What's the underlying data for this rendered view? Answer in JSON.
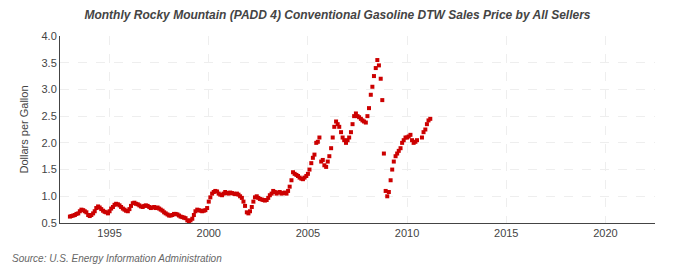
{
  "chart_data": {
    "type": "scatter",
    "title": "Monthly Rocky Mountain (PADD 4) Conventional Gasoline DTW Sales Price by All Sellers",
    "ylabel": "Dollars per Gallon",
    "annotation": "Source: U.S. Energy Information Administration",
    "color": "#cc0000",
    "marker": "square",
    "grid": true,
    "xlim": [
      1992.5,
      2022.5
    ],
    "xticks": [
      1995,
      2000,
      2005,
      2010,
      2015,
      2020
    ],
    "ylim": [
      0.5,
      4.0
    ],
    "yticks": [
      0.5,
      {
        "value": 1.0,
        "label": "1.0"
      },
      1.5,
      {
        "value": 2.0,
        "label": "2.0"
      },
      2.5,
      {
        "value": 3.0,
        "label": "3.0"
      },
      3.5,
      {
        "value": 4.0,
        "label": "4.0"
      }
    ],
    "x": [
      1993.0,
      1993.08,
      1993.17,
      1993.25,
      1993.33,
      1993.42,
      1993.5,
      1993.58,
      1993.67,
      1993.75,
      1993.83,
      1993.92,
      1994.0,
      1994.08,
      1994.17,
      1994.25,
      1994.33,
      1994.42,
      1994.5,
      1994.58,
      1994.67,
      1994.75,
      1994.83,
      1994.92,
      1995.0,
      1995.08,
      1995.17,
      1995.25,
      1995.33,
      1995.42,
      1995.5,
      1995.58,
      1995.67,
      1995.75,
      1995.83,
      1995.92,
      1996.0,
      1996.08,
      1996.17,
      1996.25,
      1996.33,
      1996.42,
      1996.5,
      1996.58,
      1996.67,
      1996.75,
      1996.83,
      1996.92,
      1997.0,
      1997.08,
      1997.17,
      1997.25,
      1997.33,
      1997.42,
      1997.5,
      1997.58,
      1997.67,
      1997.75,
      1997.83,
      1997.92,
      1998.0,
      1998.08,
      1998.17,
      1998.25,
      1998.33,
      1998.42,
      1998.5,
      1998.58,
      1998.67,
      1998.75,
      1998.83,
      1998.92,
      1999.0,
      1999.08,
      1999.17,
      1999.25,
      1999.33,
      1999.42,
      1999.5,
      1999.58,
      1999.67,
      1999.75,
      1999.83,
      1999.92,
      2000.0,
      2000.08,
      2000.17,
      2000.25,
      2000.33,
      2000.42,
      2000.5,
      2000.58,
      2000.67,
      2000.75,
      2000.83,
      2000.92,
      2001.0,
      2001.08,
      2001.17,
      2001.25,
      2001.33,
      2001.42,
      2001.5,
      2001.58,
      2001.67,
      2001.75,
      2001.83,
      2001.92,
      2002.0,
      2002.08,
      2002.17,
      2002.25,
      2002.33,
      2002.42,
      2002.5,
      2002.58,
      2002.67,
      2002.75,
      2002.83,
      2002.92,
      2003.0,
      2003.08,
      2003.17,
      2003.25,
      2003.33,
      2003.42,
      2003.5,
      2003.58,
      2003.67,
      2003.75,
      2003.83,
      2003.92,
      2004.0,
      2004.08,
      2004.17,
      2004.25,
      2004.33,
      2004.42,
      2004.5,
      2004.58,
      2004.67,
      2004.75,
      2004.83,
      2004.92,
      2005.0,
      2005.08,
      2005.17,
      2005.25,
      2005.33,
      2005.42,
      2005.5,
      2005.58,
      2005.67,
      2005.75,
      2005.83,
      2005.92,
      2006.0,
      2006.08,
      2006.17,
      2006.25,
      2006.33,
      2006.42,
      2006.5,
      2006.58,
      2006.67,
      2006.75,
      2006.83,
      2006.92,
      2007.0,
      2007.08,
      2007.17,
      2007.25,
      2007.33,
      2007.42,
      2007.5,
      2007.58,
      2007.67,
      2007.75,
      2007.83,
      2007.92,
      2008.0,
      2008.08,
      2008.17,
      2008.25,
      2008.33,
      2008.42,
      2008.5,
      2008.58,
      2008.67,
      2008.75,
      2008.83,
      2008.92,
      2009.0,
      2009.08,
      2009.17,
      2009.25,
      2009.33,
      2009.42,
      2009.5,
      2009.58,
      2009.67,
      2009.75,
      2009.83,
      2009.92,
      2010.0,
      2010.08,
      2010.17,
      2010.25,
      2010.33,
      2010.42,
      2010.5,
      2010.75,
      2010.83,
      2010.92,
      2011.0,
      2011.08,
      2011.17
    ],
    "values": [
      0.62,
      0.63,
      0.64,
      0.65,
      0.67,
      0.68,
      0.72,
      0.75,
      0.74,
      0.72,
      0.7,
      0.65,
      0.63,
      0.65,
      0.68,
      0.72,
      0.78,
      0.81,
      0.79,
      0.76,
      0.73,
      0.71,
      0.7,
      0.68,
      0.72,
      0.77,
      0.8,
      0.84,
      0.86,
      0.85,
      0.83,
      0.8,
      0.77,
      0.75,
      0.73,
      0.72,
      0.76,
      0.82,
      0.87,
      0.88,
      0.86,
      0.85,
      0.83,
      0.81,
      0.8,
      0.82,
      0.83,
      0.82,
      0.8,
      0.78,
      0.79,
      0.8,
      0.78,
      0.79,
      0.77,
      0.75,
      0.73,
      0.7,
      0.68,
      0.66,
      0.64,
      0.64,
      0.65,
      0.67,
      0.67,
      0.66,
      0.64,
      0.62,
      0.61,
      0.6,
      0.59,
      0.55,
      0.52,
      0.55,
      0.58,
      0.65,
      0.72,
      0.75,
      0.74,
      0.73,
      0.72,
      0.73,
      0.74,
      0.78,
      0.9,
      0.98,
      1.05,
      1.08,
      1.1,
      1.09,
      1.05,
      1.03,
      1.02,
      1.05,
      1.08,
      1.06,
      1.05,
      1.07,
      1.06,
      1.05,
      1.04,
      1.05,
      1.03,
      1.0,
      0.97,
      0.9,
      0.82,
      0.7,
      0.68,
      0.72,
      0.8,
      0.9,
      0.98,
      1.0,
      0.97,
      0.95,
      0.94,
      0.93,
      0.92,
      0.93,
      0.97,
      1.02,
      1.05,
      1.1,
      1.08,
      1.05,
      1.07,
      1.08,
      1.05,
      1.06,
      1.07,
      1.05,
      1.1,
      1.18,
      1.3,
      1.45,
      1.42,
      1.4,
      1.38,
      1.35,
      1.33,
      1.32,
      1.35,
      1.38,
      1.42,
      1.5,
      1.62,
      1.72,
      1.78,
      2.0,
      2.02,
      2.1,
      1.65,
      1.68,
      1.58,
      1.55,
      1.65,
      1.75,
      1.9,
      2.1,
      2.3,
      2.4,
      2.35,
      2.3,
      2.2,
      2.1,
      2.05,
      2.0,
      2.05,
      2.1,
      2.2,
      2.35,
      2.5,
      2.55,
      2.5,
      2.48,
      2.45,
      2.42,
      2.4,
      2.38,
      2.5,
      2.65,
      2.9,
      3.05,
      3.25,
      3.4,
      3.55,
      3.45,
      3.2,
      2.8,
      1.8,
      1.1,
      1.0,
      1.08,
      1.3,
      1.5,
      1.65,
      1.75,
      1.8,
      1.85,
      1.9,
      2.0,
      2.05,
      2.1,
      2.1,
      2.12,
      2.15,
      2.05,
      2.0,
      2.02,
      2.05,
      2.1,
      2.2,
      2.25,
      2.35,
      2.42,
      2.45
    ]
  }
}
